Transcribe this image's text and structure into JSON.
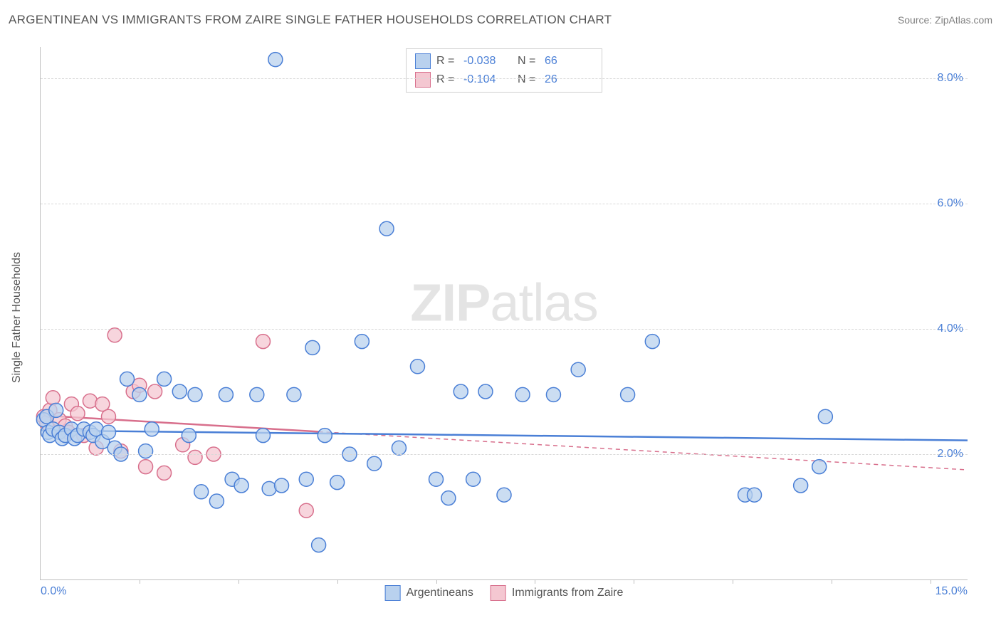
{
  "title": "ARGENTINEAN VS IMMIGRANTS FROM ZAIRE SINGLE FATHER HOUSEHOLDS CORRELATION CHART",
  "source": "Source: ZipAtlas.com",
  "ylabel": "Single Father Households",
  "watermark_bold": "ZIP",
  "watermark_rest": "atlas",
  "chart": {
    "type": "scatter",
    "xlim": [
      0.0,
      15.0
    ],
    "ylim": [
      0.0,
      8.5
    ],
    "x_ticks_labeled": {
      "0.0": "0.0%",
      "15.0": "15.0%"
    },
    "x_tick_positions_unlabeled": [
      1.6,
      3.2,
      4.8,
      6.4,
      8.0,
      9.6,
      11.2,
      12.8,
      14.4
    ],
    "y_ticks": {
      "2.0": "2.0%",
      "4.0": "4.0%",
      "6.0": "6.0%",
      "8.0": "8.0%"
    },
    "grid_color": "#d8d8d8",
    "border_color": "#bfbfbf",
    "tick_label_color": "#4a7fd6",
    "background_color": "#ffffff",
    "marker_radius": 10,
    "marker_stroke_width": 1.5,
    "trend_line_width": 2.5,
    "series": [
      {
        "name": "Argentineans",
        "fill": "#b9d1ee",
        "stroke": "#4a7fd6",
        "R": "-0.038",
        "N": "66",
        "trend": {
          "x1": 0.0,
          "y1": 2.38,
          "x2": 15.0,
          "y2": 2.22,
          "dashed_after_x": null
        },
        "points": [
          [
            0.05,
            2.55
          ],
          [
            0.1,
            2.6
          ],
          [
            0.12,
            2.35
          ],
          [
            0.15,
            2.3
          ],
          [
            0.2,
            2.4
          ],
          [
            0.25,
            2.7
          ],
          [
            0.3,
            2.35
          ],
          [
            0.35,
            2.25
          ],
          [
            0.4,
            2.3
          ],
          [
            0.5,
            2.4
          ],
          [
            0.55,
            2.25
          ],
          [
            0.6,
            2.3
          ],
          [
            0.7,
            2.4
          ],
          [
            0.8,
            2.35
          ],
          [
            0.85,
            2.3
          ],
          [
            0.9,
            2.4
          ],
          [
            1.0,
            2.2
          ],
          [
            1.1,
            2.35
          ],
          [
            1.2,
            2.1
          ],
          [
            1.3,
            2.0
          ],
          [
            1.4,
            3.2
          ],
          [
            1.6,
            2.95
          ],
          [
            1.7,
            2.05
          ],
          [
            1.8,
            2.4
          ],
          [
            2.0,
            3.2
          ],
          [
            2.25,
            3.0
          ],
          [
            2.4,
            2.3
          ],
          [
            2.5,
            2.95
          ],
          [
            2.6,
            1.4
          ],
          [
            2.85,
            1.25
          ],
          [
            3.0,
            2.95
          ],
          [
            3.1,
            1.6
          ],
          [
            3.25,
            1.5
          ],
          [
            3.5,
            2.95
          ],
          [
            3.6,
            2.3
          ],
          [
            3.7,
            1.45
          ],
          [
            3.8,
            8.3
          ],
          [
            3.9,
            1.5
          ],
          [
            4.1,
            2.95
          ],
          [
            4.3,
            1.6
          ],
          [
            4.4,
            3.7
          ],
          [
            4.5,
            0.55
          ],
          [
            4.6,
            2.3
          ],
          [
            4.8,
            1.55
          ],
          [
            5.0,
            2.0
          ],
          [
            5.2,
            3.8
          ],
          [
            5.4,
            1.85
          ],
          [
            5.6,
            5.6
          ],
          [
            5.8,
            2.1
          ],
          [
            6.1,
            3.4
          ],
          [
            6.4,
            1.6
          ],
          [
            6.6,
            1.3
          ],
          [
            6.8,
            3.0
          ],
          [
            7.0,
            1.6
          ],
          [
            7.2,
            3.0
          ],
          [
            7.5,
            1.35
          ],
          [
            7.8,
            2.95
          ],
          [
            8.3,
            2.95
          ],
          [
            8.7,
            3.35
          ],
          [
            9.5,
            2.95
          ],
          [
            9.9,
            3.8
          ],
          [
            11.4,
            1.35
          ],
          [
            11.55,
            1.35
          ],
          [
            12.3,
            1.5
          ],
          [
            12.6,
            1.8
          ],
          [
            12.7,
            2.6
          ]
        ]
      },
      {
        "name": "Immigrants from Zaire",
        "fill": "#f4c7d1",
        "stroke": "#d86f8c",
        "R": "-0.104",
        "N": "26",
        "trend": {
          "x1": 0.0,
          "y1": 2.62,
          "x2": 15.0,
          "y2": 1.75,
          "dashed_after_x": 4.5
        },
        "points": [
          [
            0.05,
            2.6
          ],
          [
            0.1,
            2.5
          ],
          [
            0.15,
            2.7
          ],
          [
            0.2,
            2.9
          ],
          [
            0.3,
            2.55
          ],
          [
            0.4,
            2.45
          ],
          [
            0.45,
            2.35
          ],
          [
            0.5,
            2.8
          ],
          [
            0.6,
            2.65
          ],
          [
            0.7,
            2.3
          ],
          [
            0.8,
            2.85
          ],
          [
            0.9,
            2.1
          ],
          [
            1.0,
            2.8
          ],
          [
            1.1,
            2.6
          ],
          [
            1.2,
            3.9
          ],
          [
            1.3,
            2.05
          ],
          [
            1.5,
            3.0
          ],
          [
            1.6,
            3.1
          ],
          [
            1.7,
            1.8
          ],
          [
            1.85,
            3.0
          ],
          [
            2.0,
            1.7
          ],
          [
            2.3,
            2.15
          ],
          [
            2.5,
            1.95
          ],
          [
            2.8,
            2.0
          ],
          [
            3.6,
            3.8
          ],
          [
            4.3,
            1.1
          ]
        ]
      }
    ]
  },
  "legend_top": {
    "r_label": "R =",
    "n_label": "N ="
  },
  "legend_bottom_labels": [
    "Argentineans",
    "Immigrants from Zaire"
  ]
}
